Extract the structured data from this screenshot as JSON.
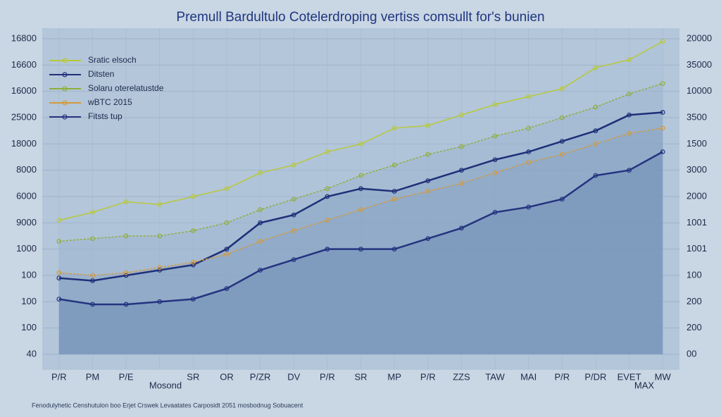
{
  "chart_data": {
    "type": "line",
    "title": "Premull Bardultulo Cotelerdroping vertiss comsullt for's bunien",
    "footer": "Fenodulyhetic Censhutulon boo Erjet Crswek Levaatates Carposidt 2051 mosbodnug Sobuacent",
    "annotations": [
      "Mosond",
      "MAX"
    ],
    "categories": [
      "P/R",
      "PM",
      "P/E",
      "",
      "SR",
      "OR",
      "P/ZR",
      "DV",
      "P/R",
      "SR",
      "MP",
      "P/R",
      "ZZS",
      "TAW",
      "MAI",
      "P/R",
      "P/DR",
      "EVET",
      "MW"
    ],
    "ylim": [
      0,
      12
    ],
    "yticks": [
      {
        "value": 0,
        "label": "40"
      },
      {
        "value": 1,
        "label": "100"
      },
      {
        "value": 2,
        "label": "100"
      },
      {
        "value": 3,
        "label": "100"
      },
      {
        "value": 4,
        "label": "1000"
      },
      {
        "value": 5,
        "label": "9000"
      },
      {
        "value": 6,
        "label": "6000"
      },
      {
        "value": 7,
        "label": "8000"
      },
      {
        "value": 8,
        "label": "18000"
      },
      {
        "value": 9,
        "label": "25000"
      },
      {
        "value": 10,
        "label": "16000"
      },
      {
        "value": 11,
        "label": "16600"
      },
      {
        "value": 12,
        "label": "16800"
      }
    ],
    "y2lim": [
      0,
      12
    ],
    "y2ticks": [
      {
        "value": 0,
        "label": "00"
      },
      {
        "value": 1,
        "label": "200"
      },
      {
        "value": 2,
        "label": "200"
      },
      {
        "value": 3,
        "label": "100"
      },
      {
        "value": 4,
        "label": "1001"
      },
      {
        "value": 5,
        "label": "1001"
      },
      {
        "value": 6,
        "label": "2000"
      },
      {
        "value": 7,
        "label": "3000"
      },
      {
        "value": 8,
        "label": "1500"
      },
      {
        "value": 9,
        "label": "3500"
      },
      {
        "value": 10,
        "label": "10000"
      },
      {
        "value": 11,
        "label": "35000"
      },
      {
        "value": 12,
        "label": "20000"
      }
    ],
    "grid": true,
    "legend": "top-left",
    "series": [
      {
        "name": "Sratic elsoch",
        "color": "#b8c938",
        "values": [
          5.1,
          5.4,
          5.8,
          5.7,
          6.0,
          6.3,
          6.9,
          7.2,
          7.7,
          8.0,
          8.6,
          8.7,
          9.1,
          9.5,
          9.8,
          10.1,
          10.9,
          11.2,
          11.9
        ]
      },
      {
        "name": "Ditsten",
        "color": "#1f2f78",
        "values": [
          2.9,
          2.8,
          3.0,
          3.2,
          3.4,
          4.0,
          5.0,
          5.3,
          6.0,
          6.3,
          6.2,
          6.6,
          7.0,
          7.4,
          7.7,
          8.1,
          8.5,
          9.1,
          9.2
        ]
      },
      {
        "name": "Solaru oterelatustde",
        "color": "#8fae3c",
        "values": [
          4.3,
          4.4,
          4.5,
          4.5,
          4.7,
          5.0,
          5.5,
          5.9,
          6.3,
          6.8,
          7.2,
          7.6,
          7.9,
          8.3,
          8.6,
          9.0,
          9.4,
          9.9,
          10.3
        ]
      },
      {
        "name": "wBTC 2015",
        "color": "#d49a3c",
        "values": [
          3.1,
          3.0,
          3.1,
          3.3,
          3.5,
          3.8,
          4.3,
          4.7,
          5.1,
          5.5,
          5.9,
          6.2,
          6.5,
          6.9,
          7.3,
          7.6,
          8.0,
          8.4,
          8.6
        ]
      },
      {
        "name": "Fitsts tup",
        "color": "#24337f",
        "values": [
          2.1,
          1.9,
          1.9,
          2.0,
          2.1,
          2.5,
          3.2,
          3.6,
          4.0,
          4.0,
          4.0,
          4.4,
          4.8,
          5.4,
          5.6,
          5.9,
          6.8,
          7.0,
          7.7
        ]
      }
    ]
  }
}
